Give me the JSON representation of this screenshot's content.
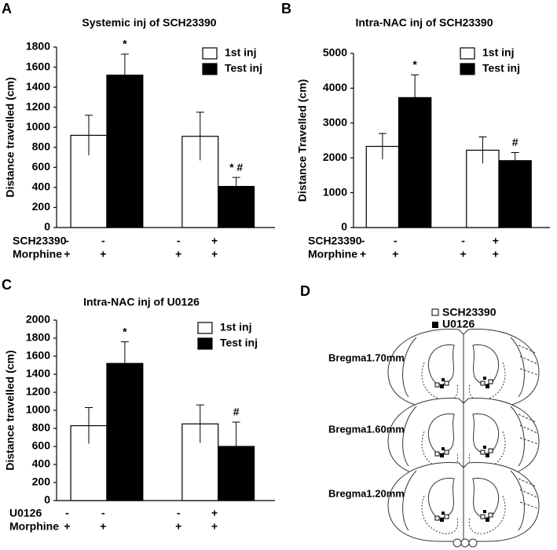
{
  "chart_data": [
    {
      "type": "bar",
      "panel": "A",
      "title": "Systemic inj of SCH23390",
      "y_label": "Distance travelled (cm)",
      "categories": [
        null,
        null
      ],
      "series": [
        {
          "name": "1st inj",
          "color": "#ffffff",
          "values": [
            920,
            910
          ],
          "errors": [
            200,
            240
          ],
          "annotations": [
            null,
            null
          ]
        },
        {
          "name": "Test inj",
          "color": "#000000",
          "values": [
            1520,
            410
          ],
          "errors": [
            210,
            90
          ],
          "annotations": [
            "*",
            "* #"
          ]
        }
      ],
      "treatments": [
        {
          "name": "SCH23390",
          "signs": [
            "-",
            "-",
            "-",
            "+"
          ]
        },
        {
          "name": "Morphine",
          "signs": [
            "+",
            "+",
            "+",
            "+"
          ]
        }
      ],
      "ylim": [
        0,
        1800
      ],
      "yticks": [
        0,
        200,
        400,
        600,
        800,
        1000,
        1200,
        1400,
        1600,
        1800
      ]
    },
    {
      "type": "bar",
      "panel": "B",
      "title": "Intra-NAC inj of SCH23390",
      "y_label": "Distance Travelled (cm)",
      "categories": [
        null,
        null
      ],
      "series": [
        {
          "name": "1st inj",
          "color": "#ffffff",
          "values": [
            2330,
            2220
          ],
          "errors": [
            370,
            380
          ],
          "annotations": [
            null,
            null
          ]
        },
        {
          "name": "Test inj",
          "color": "#000000",
          "values": [
            3730,
            1920
          ],
          "errors": [
            650,
            230
          ],
          "annotations": [
            "*",
            "#"
          ]
        }
      ],
      "treatments": [
        {
          "name": "SCH23390",
          "signs": [
            "-",
            "-",
            "-",
            "+"
          ]
        },
        {
          "name": "Morphine",
          "signs": [
            "+",
            "+",
            "+",
            "+"
          ]
        }
      ],
      "ylim": [
        0,
        5000
      ],
      "yticks": [
        0,
        1000,
        2000,
        3000,
        4000,
        5000
      ]
    },
    {
      "type": "bar",
      "panel": "C",
      "title": "Intra-NAC inj of U0126",
      "y_label": "Distance travelled (cm)",
      "categories": [
        null,
        null
      ],
      "series": [
        {
          "name": "1st inj",
          "color": "#ffffff",
          "values": [
            830,
            850
          ],
          "errors": [
            200,
            210
          ],
          "annotations": [
            null,
            null
          ]
        },
        {
          "name": "Test inj",
          "color": "#000000",
          "values": [
            1520,
            600
          ],
          "errors": [
            240,
            270
          ],
          "annotations": [
            "*",
            "#"
          ]
        }
      ],
      "treatments": [
        {
          "name": "U0126",
          "signs": [
            "-",
            "-",
            "-",
            "+"
          ]
        },
        {
          "name": "Morphine",
          "signs": [
            "+",
            "+",
            "+",
            "+"
          ]
        }
      ],
      "ylim": [
        0,
        2000
      ],
      "yticks": [
        0,
        200,
        400,
        600,
        800,
        1000,
        1200,
        1400,
        1600,
        1800,
        2000
      ]
    }
  ],
  "diagram": {
    "panel": "D",
    "legend": [
      "SCH23390",
      "U0126"
    ],
    "sections": [
      "Bregma1.70mm",
      "Bregma1.60mm",
      "Bregma1.20mm"
    ]
  }
}
